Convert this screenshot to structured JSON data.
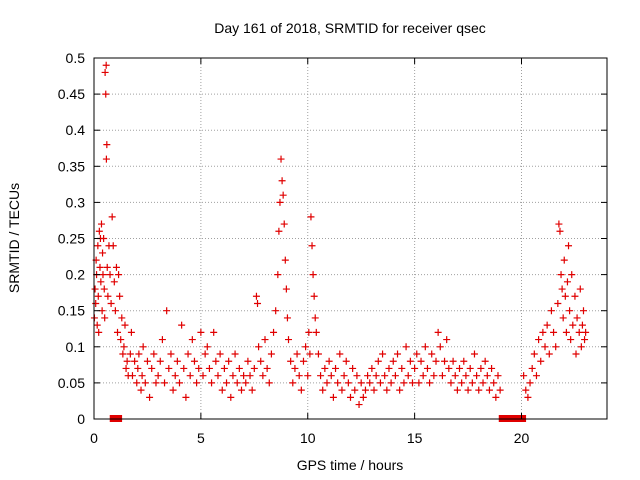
{
  "chart_data": {
    "type": "scatter",
    "title": "Day 161 of 2018, SRMTID for receiver qsec",
    "xlabel": "GPS time / hours",
    "ylabel": "SRMTID / TECUs",
    "xlim": [
      0,
      24
    ],
    "ylim": [
      0,
      0.5
    ],
    "grid": true,
    "marker": "+",
    "color": "#e00000",
    "x_ticks": [
      {
        "value": 0,
        "label": "0"
      },
      {
        "value": 5,
        "label": "5"
      },
      {
        "value": 10,
        "label": "10"
      },
      {
        "value": 15,
        "label": "15"
      },
      {
        "value": 20,
        "label": "20"
      }
    ],
    "y_ticks": [
      {
        "value": 0,
        "label": "0"
      },
      {
        "value": 0.05,
        "label": "0.05"
      },
      {
        "value": 0.1,
        "label": "0.1"
      },
      {
        "value": 0.15,
        "label": "0.15"
      },
      {
        "value": 0.2,
        "label": "0.2"
      },
      {
        "value": 0.25,
        "label": "0.25"
      },
      {
        "value": 0.3,
        "label": "0.3"
      },
      {
        "value": 0.35,
        "label": "0.35"
      },
      {
        "value": 0.4,
        "label": "0.4"
      },
      {
        "value": 0.45,
        "label": "0.45"
      },
      {
        "value": 0.5,
        "label": "0.5"
      }
    ],
    "series": [
      {
        "name": "SRMTID",
        "points": [
          [
            0.02,
            0.14
          ],
          [
            0.05,
            0.18
          ],
          [
            0.08,
            0.16
          ],
          [
            0.1,
            0.22
          ],
          [
            0.12,
            0.2
          ],
          [
            0.15,
            0.13
          ],
          [
            0.18,
            0.24
          ],
          [
            0.2,
            0.17
          ],
          [
            0.22,
            0.12
          ],
          [
            0.25,
            0.26
          ],
          [
            0.28,
            0.21
          ],
          [
            0.3,
            0.25
          ],
          [
            0.32,
            0.19
          ],
          [
            0.35,
            0.27
          ],
          [
            0.38,
            0.15
          ],
          [
            0.4,
            0.23
          ],
          [
            0.42,
            0.2
          ],
          [
            0.45,
            0.25
          ],
          [
            0.48,
            0.18
          ],
          [
            0.5,
            0.14
          ],
          [
            0.52,
            0.48
          ],
          [
            0.55,
            0.45
          ],
          [
            0.57,
            0.49
          ],
          [
            0.58,
            0.36
          ],
          [
            0.6,
            0.38
          ],
          [
            0.62,
            0.21
          ],
          [
            0.65,
            0.17
          ],
          [
            0.7,
            0.24
          ],
          [
            0.75,
            0.2
          ],
          [
            0.8,
            0.16
          ],
          [
            0.85,
            0.28
          ],
          [
            0.9,
            0.24
          ],
          [
            0.95,
            0.19
          ],
          [
            1.0,
            0.15
          ],
          [
            1.05,
            0.21
          ],
          [
            1.1,
            0.12
          ],
          [
            1.15,
            0.2
          ],
          [
            1.2,
            0.17
          ],
          [
            1.25,
            0.11
          ],
          [
            1.3,
            0.14
          ],
          [
            1.35,
            0.09
          ],
          [
            1.4,
            0.1
          ],
          [
            1.45,
            0.13
          ],
          [
            1.5,
            0.07
          ],
          [
            1.55,
            0.08
          ],
          [
            1.6,
            0.06
          ],
          [
            1.7,
            0.09
          ],
          [
            1.75,
            0.12
          ],
          [
            1.8,
            0.06
          ],
          [
            1.9,
            0.08
          ],
          [
            2.0,
            0.05
          ],
          [
            2.05,
            0.07
          ],
          [
            2.1,
            0.09
          ],
          [
            2.2,
            0.04
          ],
          [
            2.25,
            0.06
          ],
          [
            2.3,
            0.1
          ],
          [
            2.4,
            0.05
          ],
          [
            2.5,
            0.08
          ],
          [
            2.6,
            0.03
          ],
          [
            2.7,
            0.07
          ],
          [
            2.8,
            0.09
          ],
          [
            2.9,
            0.05
          ],
          [
            3.0,
            0.06
          ],
          [
            3.1,
            0.08
          ],
          [
            3.2,
            0.11
          ],
          [
            3.3,
            0.05
          ],
          [
            3.4,
            0.15
          ],
          [
            3.5,
            0.07
          ],
          [
            3.6,
            0.09
          ],
          [
            3.7,
            0.04
          ],
          [
            3.8,
            0.06
          ],
          [
            3.9,
            0.08
          ],
          [
            4.0,
            0.05
          ],
          [
            4.1,
            0.13
          ],
          [
            4.2,
            0.07
          ],
          [
            4.3,
            0.03
          ],
          [
            4.4,
            0.09
          ],
          [
            4.5,
            0.06
          ],
          [
            4.6,
            0.11
          ],
          [
            4.7,
            0.08
          ],
          [
            4.8,
            0.05
          ],
          [
            4.9,
            0.07
          ],
          [
            5.0,
            0.12
          ],
          [
            5.1,
            0.06
          ],
          [
            5.2,
            0.09
          ],
          [
            5.3,
            0.1
          ],
          [
            5.4,
            0.07
          ],
          [
            5.5,
            0.05
          ],
          [
            5.6,
            0.12
          ],
          [
            5.7,
            0.08
          ],
          [
            5.8,
            0.06
          ],
          [
            5.9,
            0.09
          ],
          [
            6.0,
            0.04
          ],
          [
            6.1,
            0.07
          ],
          [
            6.2,
            0.05
          ],
          [
            6.3,
            0.08
          ],
          [
            6.4,
            0.03
          ],
          [
            6.5,
            0.06
          ],
          [
            6.6,
            0.09
          ],
          [
            6.7,
            0.05
          ],
          [
            6.8,
            0.07
          ],
          [
            6.9,
            0.04
          ],
          [
            7.0,
            0.06
          ],
          [
            7.1,
            0.05
          ],
          [
            7.2,
            0.08
          ],
          [
            7.3,
            0.06
          ],
          [
            7.4,
            0.04
          ],
          [
            7.5,
            0.07
          ],
          [
            7.6,
            0.17
          ],
          [
            7.65,
            0.16
          ],
          [
            7.7,
            0.1
          ],
          [
            7.8,
            0.08
          ],
          [
            7.9,
            0.06
          ],
          [
            8.0,
            0.11
          ],
          [
            8.1,
            0.07
          ],
          [
            8.2,
            0.05
          ],
          [
            8.3,
            0.09
          ],
          [
            8.4,
            0.12
          ],
          [
            8.5,
            0.15
          ],
          [
            8.6,
            0.2
          ],
          [
            8.65,
            0.26
          ],
          [
            8.7,
            0.3
          ],
          [
            8.75,
            0.36
          ],
          [
            8.8,
            0.33
          ],
          [
            8.85,
            0.31
          ],
          [
            8.9,
            0.27
          ],
          [
            8.95,
            0.22
          ],
          [
            9.0,
            0.18
          ],
          [
            9.05,
            0.14
          ],
          [
            9.1,
            0.11
          ],
          [
            9.2,
            0.08
          ],
          [
            9.3,
            0.05
          ],
          [
            9.4,
            0.07
          ],
          [
            9.5,
            0.09
          ],
          [
            9.6,
            0.06
          ],
          [
            9.7,
            0.04
          ],
          [
            9.8,
            0.08
          ],
          [
            9.9,
            0.1
          ],
          [
            10.0,
            0.06
          ],
          [
            10.05,
            0.12
          ],
          [
            10.1,
            0.09
          ],
          [
            10.15,
            0.28
          ],
          [
            10.2,
            0.24
          ],
          [
            10.25,
            0.2
          ],
          [
            10.3,
            0.17
          ],
          [
            10.35,
            0.14
          ],
          [
            10.4,
            0.12
          ],
          [
            10.5,
            0.09
          ],
          [
            10.6,
            0.06
          ],
          [
            10.7,
            0.04
          ],
          [
            10.8,
            0.07
          ],
          [
            10.9,
            0.05
          ],
          [
            11.0,
            0.08
          ],
          [
            11.1,
            0.06
          ],
          [
            11.2,
            0.03
          ],
          [
            11.3,
            0.07
          ],
          [
            11.4,
            0.05
          ],
          [
            11.5,
            0.09
          ],
          [
            11.6,
            0.04
          ],
          [
            11.7,
            0.06
          ],
          [
            11.8,
            0.08
          ],
          [
            11.9,
            0.05
          ],
          [
            12.0,
            0.03
          ],
          [
            12.1,
            0.07
          ],
          [
            12.2,
            0.04
          ],
          [
            12.3,
            0.06
          ],
          [
            12.4,
            0.02
          ],
          [
            12.5,
            0.05
          ],
          [
            12.6,
            0.03
          ],
          [
            12.7,
            0.04
          ],
          [
            12.8,
            0.06
          ],
          [
            12.9,
            0.05
          ],
          [
            13.0,
            0.07
          ],
          [
            13.1,
            0.04
          ],
          [
            13.2,
            0.06
          ],
          [
            13.3,
            0.08
          ],
          [
            13.4,
            0.05
          ],
          [
            13.5,
            0.09
          ],
          [
            13.6,
            0.06
          ],
          [
            13.7,
            0.04
          ],
          [
            13.8,
            0.07
          ],
          [
            13.9,
            0.05
          ],
          [
            14.0,
            0.08
          ],
          [
            14.1,
            0.06
          ],
          [
            14.2,
            0.09
          ],
          [
            14.3,
            0.04
          ],
          [
            14.4,
            0.07
          ],
          [
            14.5,
            0.05
          ],
          [
            14.6,
            0.1
          ],
          [
            14.7,
            0.06
          ],
          [
            14.8,
            0.08
          ],
          [
            14.9,
            0.05
          ],
          [
            15.0,
            0.07
          ],
          [
            15.1,
            0.09
          ],
          [
            15.2,
            0.05
          ],
          [
            15.3,
            0.08
          ],
          [
            15.4,
            0.06
          ],
          [
            15.5,
            0.1
          ],
          [
            15.6,
            0.07
          ],
          [
            15.7,
            0.05
          ],
          [
            15.8,
            0.09
          ],
          [
            15.9,
            0.06
          ],
          [
            16.0,
            0.08
          ],
          [
            16.1,
            0.12
          ],
          [
            16.2,
            0.1
          ],
          [
            16.3,
            0.06
          ],
          [
            16.4,
            0.08
          ],
          [
            16.5,
            0.11
          ],
          [
            16.6,
            0.07
          ],
          [
            16.7,
            0.05
          ],
          [
            16.8,
            0.08
          ],
          [
            16.9,
            0.06
          ],
          [
            17.0,
            0.04
          ],
          [
            17.1,
            0.07
          ],
          [
            17.2,
            0.05
          ],
          [
            17.3,
            0.08
          ],
          [
            17.4,
            0.06
          ],
          [
            17.5,
            0.04
          ],
          [
            17.6,
            0.07
          ],
          [
            17.7,
            0.05
          ],
          [
            17.8,
            0.09
          ],
          [
            17.9,
            0.06
          ],
          [
            18.0,
            0.04
          ],
          [
            18.1,
            0.07
          ],
          [
            18.2,
            0.05
          ],
          [
            18.3,
            0.08
          ],
          [
            18.4,
            0.06
          ],
          [
            18.5,
            0.04
          ],
          [
            18.6,
            0.07
          ],
          [
            18.7,
            0.05
          ],
          [
            18.8,
            0.03
          ],
          [
            18.9,
            0.06
          ],
          [
            19.0,
            0.04
          ],
          [
            20.1,
            0.06
          ],
          [
            20.2,
            0.04
          ],
          [
            20.3,
            0.03
          ],
          [
            20.4,
            0.05
          ],
          [
            20.5,
            0.07
          ],
          [
            20.6,
            0.09
          ],
          [
            20.7,
            0.06
          ],
          [
            20.8,
            0.11
          ],
          [
            20.9,
            0.08
          ],
          [
            21.0,
            0.12
          ],
          [
            21.1,
            0.1
          ],
          [
            21.2,
            0.13
          ],
          [
            21.3,
            0.09
          ],
          [
            21.4,
            0.15
          ],
          [
            21.5,
            0.12
          ],
          [
            21.6,
            0.1
          ],
          [
            21.7,
            0.16
          ],
          [
            21.75,
            0.27
          ],
          [
            21.8,
            0.26
          ],
          [
            21.85,
            0.2
          ],
          [
            21.9,
            0.18
          ],
          [
            21.95,
            0.14
          ],
          [
            22.0,
            0.22
          ],
          [
            22.05,
            0.17
          ],
          [
            22.1,
            0.12
          ],
          [
            22.15,
            0.19
          ],
          [
            22.2,
            0.24
          ],
          [
            22.25,
            0.15
          ],
          [
            22.3,
            0.11
          ],
          [
            22.35,
            0.2
          ],
          [
            22.4,
            0.13
          ],
          [
            22.5,
            0.17
          ],
          [
            22.55,
            0.09
          ],
          [
            22.6,
            0.14
          ],
          [
            22.7,
            0.12
          ],
          [
            22.75,
            0.18
          ],
          [
            22.8,
            0.1
          ],
          [
            22.85,
            0.13
          ],
          [
            22.9,
            0.15
          ],
          [
            22.95,
            0.11
          ],
          [
            23.0,
            0.12
          ]
        ]
      }
    ],
    "gap_markers": [
      {
        "x": 0.9,
        "y": 0
      },
      {
        "x": 1.15,
        "y": 0
      },
      {
        "x": 19.1,
        "y": 0
      },
      {
        "x": 19.35,
        "y": 0
      },
      {
        "x": 19.6,
        "y": 0
      },
      {
        "x": 19.85,
        "y": 0
      },
      {
        "x": 20.05,
        "y": 0
      }
    ]
  }
}
